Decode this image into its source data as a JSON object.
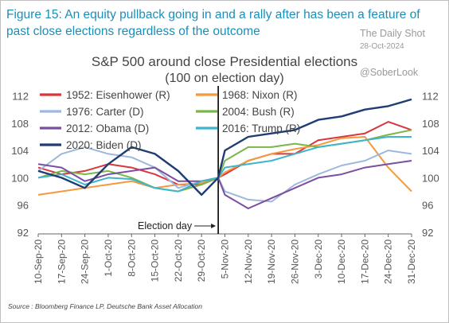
{
  "figure_title": "Figure 15: An equity pullback going in and a rally after has been a feature of past close elections regardless of the outcome",
  "watermark": {
    "name": "The Daily Shot",
    "date": "28-Oct-2024",
    "handle": "@SoberLook"
  },
  "source": "Source : Bloomberg Finance LP, Deutsche Bank Asset Allocation",
  "chart_data": {
    "type": "line",
    "title": "S&P 500 around close Presidential elections",
    "subtitle": "(100 on election day)",
    "xlabel": "",
    "ylabel": "",
    "ylim": [
      92,
      113
    ],
    "yticks": [
      92,
      96,
      100,
      104,
      108,
      112
    ],
    "xlim": [
      "2020-09-10",
      "2020-12-31"
    ],
    "xticks": [
      "10-Sep-20",
      "17-Sep-20",
      "24-Sep-20",
      "1-Oct-20",
      "8-Oct-20",
      "15-Oct-20",
      "22-Oct-20",
      "29-Oct-20",
      "5-Nov-20",
      "12-Nov-20",
      "19-Nov-20",
      "26-Nov-20",
      "3-Dec-20",
      "10-Dec-20",
      "17-Dec-20",
      "24-Dec-20",
      "31-Dec-20"
    ],
    "xtick_dates": [
      "2020-09-10",
      "2020-09-17",
      "2020-09-24",
      "2020-10-01",
      "2020-10-08",
      "2020-10-15",
      "2020-10-22",
      "2020-10-29",
      "2020-11-05",
      "2020-11-12",
      "2020-11-19",
      "2020-11-26",
      "2020-12-03",
      "2020-12-10",
      "2020-12-17",
      "2020-12-24",
      "2020-12-31"
    ],
    "annotation": {
      "label": "Election day",
      "x": "2020-11-03"
    },
    "legend_position": "top",
    "grid": false,
    "series": [
      {
        "name": "1952: Eisenhower (R)",
        "color": "#d9363e",
        "x": [
          "2020-09-10",
          "2020-09-17",
          "2020-09-24",
          "2020-10-01",
          "2020-10-08",
          "2020-10-15",
          "2020-10-22",
          "2020-10-29",
          "2020-11-03",
          "2020-11-05",
          "2020-11-12",
          "2020-11-19",
          "2020-11-26",
          "2020-12-03",
          "2020-12-10",
          "2020-12-17",
          "2020-12-24",
          "2020-12-31"
        ],
        "values": [
          101.5,
          100.5,
          101,
          102,
          101.5,
          100.5,
          99,
          99,
          100,
          100.5,
          102.5,
          103.5,
          103.5,
          105.5,
          106,
          106.5,
          108.2,
          107
        ]
      },
      {
        "name": "1968: Nixon (R)",
        "color": "#f39a3e",
        "x": [
          "2020-09-10",
          "2020-09-17",
          "2020-09-24",
          "2020-10-01",
          "2020-10-08",
          "2020-10-15",
          "2020-10-22",
          "2020-10-29",
          "2020-11-03",
          "2020-11-05",
          "2020-11-12",
          "2020-11-19",
          "2020-11-26",
          "2020-12-03",
          "2020-12-10",
          "2020-12-17",
          "2020-12-24",
          "2020-12-31"
        ],
        "values": [
          97.5,
          98,
          98.5,
          99,
          99.5,
          98.5,
          99,
          99.2,
          100,
          100.8,
          102.5,
          103.5,
          104.2,
          104.8,
          105.8,
          106,
          101.5,
          98
        ]
      },
      {
        "name": "1976: Carter (D)",
        "color": "#9cb9dd",
        "x": [
          "2020-09-10",
          "2020-09-17",
          "2020-09-24",
          "2020-10-01",
          "2020-10-08",
          "2020-10-15",
          "2020-10-22",
          "2020-10-29",
          "2020-11-03",
          "2020-11-05",
          "2020-11-12",
          "2020-11-19",
          "2020-11-26",
          "2020-12-03",
          "2020-12-10",
          "2020-12-17",
          "2020-12-24",
          "2020-12-31"
        ],
        "values": [
          101,
          103.5,
          104.5,
          103.5,
          103,
          101.5,
          98.5,
          99.5,
          100,
          98,
          96.8,
          96.5,
          99,
          100.5,
          101.8,
          102.5,
          104,
          103.5
        ]
      },
      {
        "name": "2004: Bush (R)",
        "color": "#7ab648",
        "x": [
          "2020-09-10",
          "2020-09-17",
          "2020-09-24",
          "2020-10-01",
          "2020-10-08",
          "2020-10-15",
          "2020-10-22",
          "2020-10-29",
          "2020-11-03",
          "2020-11-05",
          "2020-11-12",
          "2020-11-19",
          "2020-11-26",
          "2020-12-03",
          "2020-12-10",
          "2020-12-17",
          "2020-12-24",
          "2020-12-31"
        ],
        "values": [
          100,
          101,
          100.5,
          101,
          100,
          98.5,
          98,
          99,
          100,
          102.5,
          104.5,
          104.5,
          105,
          104.5,
          105,
          105.5,
          106.3,
          107
        ]
      },
      {
        "name": "2012: Obama (D)",
        "color": "#7a4fa0",
        "x": [
          "2020-09-10",
          "2020-09-17",
          "2020-09-24",
          "2020-10-01",
          "2020-10-08",
          "2020-10-15",
          "2020-10-22",
          "2020-10-29",
          "2020-11-03",
          "2020-11-05",
          "2020-11-12",
          "2020-11-19",
          "2020-11-26",
          "2020-12-03",
          "2020-12-10",
          "2020-12-17",
          "2020-12-24",
          "2020-12-31"
        ],
        "values": [
          102,
          101.5,
          99.5,
          100.5,
          101,
          101.5,
          99.5,
          99.5,
          100,
          97.5,
          95.5,
          97,
          98.5,
          100,
          100.5,
          101.5,
          102,
          102.5
        ]
      },
      {
        "name": "2016: Trump (R)",
        "color": "#3fb4cc",
        "x": [
          "2020-09-10",
          "2020-09-17",
          "2020-09-24",
          "2020-10-01",
          "2020-10-08",
          "2020-10-15",
          "2020-10-22",
          "2020-10-29",
          "2020-11-03",
          "2020-11-05",
          "2020-11-12",
          "2020-11-19",
          "2020-11-26",
          "2020-12-03",
          "2020-12-10",
          "2020-12-17",
          "2020-12-24",
          "2020-12-31"
        ],
        "values": [
          100,
          100.5,
          99,
          100,
          99.8,
          98.5,
          98,
          99.5,
          100,
          101.5,
          102,
          102.5,
          103.5,
          104.5,
          105,
          105.5,
          106,
          106
        ]
      },
      {
        "name": "2020: Biden (D)",
        "color": "#1f3c73",
        "x": [
          "2020-09-10",
          "2020-09-17",
          "2020-09-24",
          "2020-10-01",
          "2020-10-08",
          "2020-10-15",
          "2020-10-22",
          "2020-10-29",
          "2020-11-03",
          "2020-11-05",
          "2020-11-12",
          "2020-11-19",
          "2020-11-26",
          "2020-12-03",
          "2020-12-10",
          "2020-12-17",
          "2020-12-24",
          "2020-12-31"
        ],
        "values": [
          101,
          100,
          98.5,
          102,
          104.5,
          103.5,
          101,
          97.5,
          100,
          104,
          106,
          106.5,
          107,
          108.5,
          109,
          110,
          110.5,
          111.5
        ]
      }
    ]
  }
}
